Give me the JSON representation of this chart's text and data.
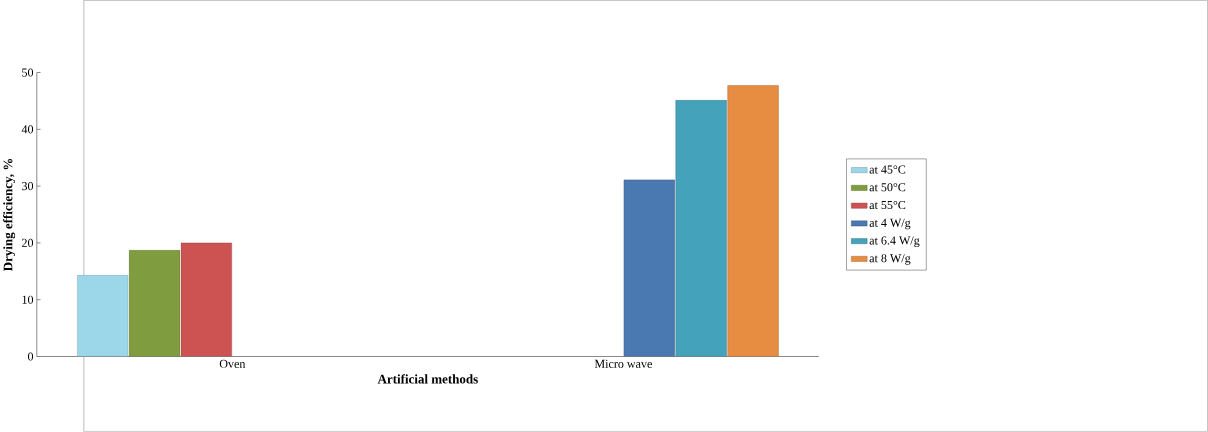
{
  "chart_data": {
    "type": "bar",
    "xlabel": "Artificial methods",
    "ylabel": "Drying efficiency, %",
    "categories": [
      "Oven",
      "Micro wave"
    ],
    "series": [
      {
        "name": "at 45°C",
        "color": "#9bd7e8",
        "values": [
          14.3,
          null
        ]
      },
      {
        "name": "at 50°C",
        "color": "#7f9c3f",
        "values": [
          18.7,
          null
        ]
      },
      {
        "name": "at 55°C",
        "color": "#cd5353",
        "values": [
          20.0,
          null
        ]
      },
      {
        "name": "at 4 W/g",
        "color": "#4a78b0",
        "values": [
          null,
          31.1
        ]
      },
      {
        "name": "at 6.4 W/g",
        "color": "#45a2bb",
        "values": [
          null,
          45.1
        ]
      },
      {
        "name": "at 8 W/g",
        "color": "#e78d42",
        "values": [
          null,
          47.7
        ]
      }
    ],
    "ylim": [
      0,
      50
    ],
    "yticks": [
      0,
      10,
      20,
      30,
      40,
      50
    ],
    "legend": "right"
  }
}
